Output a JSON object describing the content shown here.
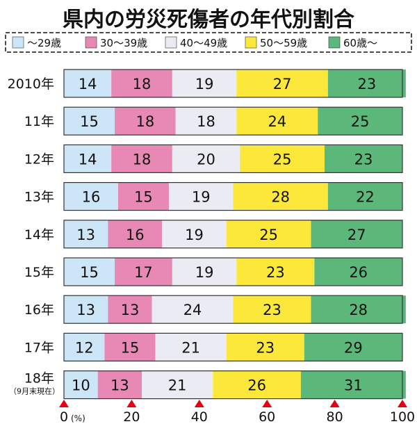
{
  "chart_data": {
    "type": "bar",
    "stacked": true,
    "orientation": "horizontal",
    "title": "県内の労災死傷者の年代別割合",
    "categories": [
      "2010年",
      "11年",
      "12年",
      "13年",
      "14年",
      "15年",
      "16年",
      "17年",
      "18年"
    ],
    "category_notes": [
      "",
      "",
      "",
      "",
      "",
      "",
      "",
      "",
      "（9月末現在）"
    ],
    "series": [
      {
        "name": "〜29歳",
        "color": "#cce6f7",
        "values": [
          14,
          15,
          14,
          16,
          13,
          15,
          13,
          12,
          10
        ]
      },
      {
        "name": "30〜39歳",
        "color": "#e889b5",
        "values": [
          18,
          18,
          18,
          15,
          16,
          17,
          13,
          15,
          13
        ]
      },
      {
        "name": "40〜49歳",
        "color": "#ebebf4",
        "values": [
          19,
          18,
          20,
          19,
          19,
          19,
          24,
          21,
          21
        ]
      },
      {
        "name": "50〜59歳",
        "color": "#fbe83a",
        "values": [
          27,
          24,
          25,
          28,
          25,
          23,
          23,
          23,
          26
        ]
      },
      {
        "name": "60歳〜",
        "color": "#5cb87a",
        "values": [
          23,
          25,
          23,
          22,
          27,
          26,
          28,
          29,
          31
        ]
      }
    ],
    "xlim": [
      0,
      100
    ],
    "xticks": [
      0,
      20,
      40,
      60,
      80,
      100
    ],
    "xunit": "(%)",
    "legend_position": "top",
    "tick_marker_color": "#e60012"
  }
}
